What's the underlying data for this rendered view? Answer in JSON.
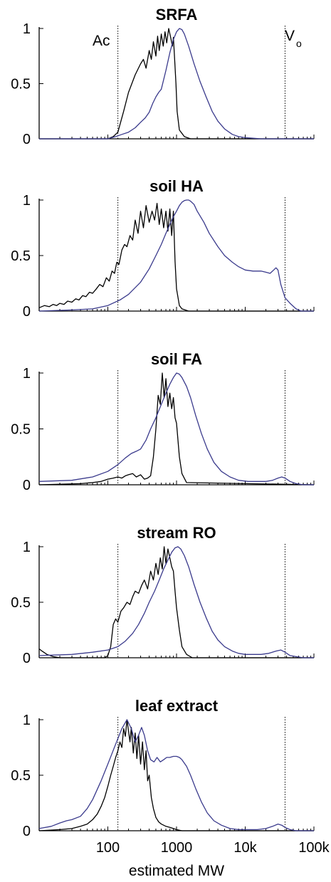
{
  "figure": {
    "xlabel": "estimated MW"
  },
  "annotations": {
    "ac_label": "Ac",
    "vo_label": "V",
    "vo_sub": "o"
  },
  "chart_data": [
    {
      "type": "line",
      "title": "SRFA",
      "xscale": "log",
      "xlim": [
        10,
        100000
      ],
      "ylim": [
        0,
        1
      ],
      "x_ticks": [
        "100",
        "1000",
        "10k",
        "100k"
      ],
      "y_ticks": [
        "0",
        "0.5",
        "1"
      ],
      "xlabel": "",
      "ylabel": "",
      "reference_lines": [
        {
          "label": "Ac",
          "x": 140
        },
        {
          "label": "Vo",
          "x": 38000
        }
      ],
      "series": [
        {
          "color": "#000000",
          "x": [
            10,
            100,
            120,
            140,
            170,
            200,
            250,
            300,
            330,
            360,
            400,
            430,
            460,
            500,
            530,
            560,
            600,
            640,
            680,
            720,
            770,
            820,
            870,
            900,
            930,
            980,
            1020,
            1100,
            1300,
            1600,
            100000
          ],
          "y": [
            0,
            0,
            0.02,
            0.06,
            0.25,
            0.42,
            0.58,
            0.68,
            0.72,
            0.64,
            0.8,
            0.72,
            0.88,
            0.75,
            0.93,
            0.8,
            0.95,
            0.84,
            0.97,
            0.87,
            1.0,
            0.92,
            0.84,
            0.92,
            0.76,
            0.5,
            0.25,
            0.08,
            0.02,
            0,
            0
          ]
        },
        {
          "color": "#3a3a8c",
          "x": [
            10,
            100,
            130,
            160,
            200,
            250,
            300,
            350,
            400,
            450,
            500,
            550,
            600,
            700,
            800,
            900,
            1000,
            1100,
            1200,
            1300,
            1500,
            1800,
            2200,
            2700,
            3300,
            4000,
            5000,
            6500,
            8000,
            10000,
            13000,
            17000,
            22000,
            30000,
            38000,
            100000
          ],
          "y": [
            0,
            0,
            0.02,
            0.04,
            0.06,
            0.1,
            0.15,
            0.19,
            0.24,
            0.32,
            0.38,
            0.42,
            0.45,
            0.62,
            0.78,
            0.9,
            0.97,
            1.0,
            0.99,
            0.95,
            0.84,
            0.68,
            0.52,
            0.38,
            0.25,
            0.16,
            0.09,
            0.04,
            0.02,
            0.01,
            0.005,
            0,
            0,
            0,
            0,
            0
          ]
        }
      ]
    },
    {
      "type": "line",
      "title": "soil HA",
      "xscale": "log",
      "xlim": [
        10,
        100000
      ],
      "ylim": [
        0,
        1
      ],
      "x_ticks": [
        "100",
        "1000",
        "10k",
        "100k"
      ],
      "y_ticks": [
        "0",
        "0.5",
        "1"
      ],
      "xlabel": "",
      "ylabel": "",
      "reference_lines": [
        {
          "label": "Ac",
          "x": 140
        },
        {
          "label": "Vo",
          "x": 38000
        }
      ],
      "series": [
        {
          "color": "#000000",
          "x": [
            10,
            12,
            14,
            16,
            18,
            20,
            23,
            26,
            30,
            34,
            38,
            43,
            48,
            54,
            60,
            68,
            76,
            85,
            95,
            105,
            115,
            125,
            135,
            145,
            160,
            175,
            190,
            210,
            230,
            250,
            275,
            300,
            330,
            360,
            400,
            440,
            480,
            520,
            560,
            600,
            650,
            700,
            750,
            800,
            850,
            900,
            950,
            1000,
            1100,
            1200,
            1500,
            100000
          ],
          "y": [
            0.03,
            0.05,
            0.04,
            0.06,
            0.05,
            0.07,
            0.06,
            0.09,
            0.08,
            0.11,
            0.1,
            0.14,
            0.13,
            0.17,
            0.16,
            0.2,
            0.24,
            0.22,
            0.3,
            0.27,
            0.36,
            0.34,
            0.44,
            0.42,
            0.55,
            0.6,
            0.58,
            0.68,
            0.64,
            0.82,
            0.7,
            0.9,
            0.75,
            0.95,
            0.8,
            0.9,
            0.82,
            0.97,
            0.78,
            0.92,
            0.75,
            0.9,
            0.72,
            0.92,
            0.68,
            0.9,
            0.45,
            0.2,
            0.05,
            0.02,
            0,
            0
          ]
        },
        {
          "color": "#3a3a8c",
          "x": [
            10,
            30,
            60,
            100,
            150,
            200,
            300,
            400,
            500,
            600,
            700,
            800,
            900,
            1000,
            1100,
            1200,
            1300,
            1400,
            1500,
            1600,
            1800,
            2000,
            2500,
            3000,
            4000,
            5000,
            6500,
            8000,
            10000,
            13000,
            17000,
            20000,
            23000,
            26000,
            28000,
            30000,
            33000,
            38000,
            45000,
            55000,
            65000,
            100000
          ],
          "y": [
            0,
            0.01,
            0.02,
            0.05,
            0.1,
            0.15,
            0.26,
            0.38,
            0.5,
            0.6,
            0.7,
            0.78,
            0.85,
            0.9,
            0.95,
            0.98,
            0.995,
            1.0,
            1.0,
            0.99,
            0.96,
            0.9,
            0.8,
            0.7,
            0.58,
            0.5,
            0.44,
            0.4,
            0.37,
            0.36,
            0.36,
            0.35,
            0.34,
            0.37,
            0.39,
            0.37,
            0.24,
            0.12,
            0.07,
            0.02,
            0,
            0
          ]
        }
      ]
    },
    {
      "type": "line",
      "title": "soil FA",
      "xscale": "log",
      "xlim": [
        10,
        100000
      ],
      "ylim": [
        0,
        1
      ],
      "x_ticks": [
        "100",
        "1000",
        "10k",
        "100k"
      ],
      "y_ticks": [
        "0",
        "0.5",
        "1"
      ],
      "xlabel": "",
      "ylabel": "",
      "reference_lines": [
        {
          "label": "Ac",
          "x": 140
        },
        {
          "label": "Vo",
          "x": 38000
        }
      ],
      "series": [
        {
          "color": "#000000",
          "x": [
            10,
            40,
            60,
            80,
            100,
            120,
            140,
            160,
            180,
            200,
            230,
            260,
            300,
            340,
            380,
            420,
            460,
            500,
            540,
            580,
            620,
            660,
            700,
            750,
            800,
            850,
            900,
            950,
            1000,
            1050,
            1100,
            1200,
            1400,
            100000
          ],
          "y": [
            0,
            0.01,
            0.02,
            0.03,
            0.05,
            0.06,
            0.07,
            0.06,
            0.08,
            0.09,
            0.1,
            0.07,
            0.09,
            0.05,
            0.06,
            0.08,
            0.25,
            0.5,
            0.8,
            0.72,
            1.0,
            0.78,
            0.95,
            0.7,
            0.82,
            0.68,
            0.78,
            0.6,
            0.55,
            0.4,
            0.25,
            0.1,
            0.02,
            0
          ]
        },
        {
          "color": "#3a3a8c",
          "x": [
            10,
            30,
            60,
            100,
            140,
            180,
            220,
            260,
            300,
            360,
            420,
            500,
            600,
            700,
            800,
            900,
            1000,
            1100,
            1200,
            1400,
            1600,
            1900,
            2300,
            2800,
            3500,
            4500,
            6000,
            8000,
            11000,
            15000,
            20000,
            25000,
            30000,
            34000,
            38000,
            45000,
            55000,
            70000,
            100000
          ],
          "y": [
            0.03,
            0.04,
            0.07,
            0.12,
            0.18,
            0.24,
            0.28,
            0.3,
            0.32,
            0.4,
            0.5,
            0.6,
            0.72,
            0.82,
            0.9,
            0.96,
            1.0,
            0.99,
            0.96,
            0.88,
            0.78,
            0.62,
            0.46,
            0.32,
            0.2,
            0.12,
            0.07,
            0.04,
            0.03,
            0.03,
            0.03,
            0.04,
            0.06,
            0.07,
            0.06,
            0.03,
            0.01,
            0,
            0
          ]
        }
      ]
    },
    {
      "type": "line",
      "title": "stream RO",
      "xscale": "log",
      "xlim": [
        10,
        100000
      ],
      "ylim": [
        0,
        1
      ],
      "x_ticks": [
        "100",
        "1000",
        "10k",
        "100k"
      ],
      "y_ticks": [
        "0",
        "0.5",
        "1"
      ],
      "xlabel": "",
      "ylabel": "",
      "reference_lines": [
        {
          "label": "Ac",
          "x": 140
        },
        {
          "label": "Vo",
          "x": 38000
        }
      ],
      "series": [
        {
          "color": "#000000",
          "x": [
            10,
            11,
            13,
            16,
            20,
            30,
            60,
            90,
            100,
            110,
            120,
            130,
            140,
            155,
            170,
            190,
            210,
            230,
            250,
            280,
            310,
            340,
            380,
            420,
            460,
            500,
            540,
            580,
            620,
            660,
            700,
            750,
            800,
            850,
            900,
            950,
            1000,
            1100,
            1200,
            1400,
            1700,
            100000
          ],
          "y": [
            0.08,
            0.06,
            0.03,
            0.01,
            0,
            0,
            0,
            0,
            0.02,
            0.1,
            0.3,
            0.35,
            0.32,
            0.42,
            0.45,
            0.5,
            0.48,
            0.55,
            0.6,
            0.58,
            0.65,
            0.7,
            0.62,
            0.78,
            0.7,
            0.85,
            0.75,
            0.9,
            0.8,
            1.0,
            0.85,
            0.98,
            0.9,
            0.82,
            0.78,
            0.6,
            0.45,
            0.25,
            0.1,
            0.03,
            0,
            0
          ]
        },
        {
          "color": "#3a3a8c",
          "x": [
            10,
            30,
            60,
            100,
            140,
            180,
            230,
            280,
            340,
            400,
            480,
            560,
            650,
            750,
            850,
            950,
            1050,
            1150,
            1300,
            1500,
            1800,
            2200,
            2700,
            3300,
            4000,
            5000,
            6500,
            8000,
            10000,
            13000,
            17000,
            22000,
            28000,
            33000,
            38000,
            45000,
            55000,
            70000,
            100000
          ],
          "y": [
            0.02,
            0.03,
            0.05,
            0.07,
            0.1,
            0.15,
            0.22,
            0.3,
            0.4,
            0.5,
            0.6,
            0.7,
            0.8,
            0.88,
            0.95,
            0.99,
            1.0,
            0.98,
            0.92,
            0.82,
            0.66,
            0.5,
            0.36,
            0.24,
            0.16,
            0.1,
            0.06,
            0.04,
            0.03,
            0.03,
            0.03,
            0.04,
            0.06,
            0.07,
            0.05,
            0.02,
            0.01,
            0,
            0
          ]
        }
      ]
    },
    {
      "type": "line",
      "title": "leaf extract",
      "xscale": "log",
      "xlim": [
        10,
        100000
      ],
      "ylim": [
        0,
        1
      ],
      "x_ticks": [
        "100",
        "1000",
        "10k",
        "100k"
      ],
      "y_ticks": [
        "0",
        "0.5",
        "1"
      ],
      "xlabel": "",
      "ylabel": "",
      "reference_lines": [
        {
          "label": "Ac",
          "x": 140
        },
        {
          "label": "Vo",
          "x": 38000
        }
      ],
      "series": [
        {
          "color": "#000000",
          "x": [
            10,
            20,
            30,
            40,
            50,
            60,
            70,
            80,
            90,
            100,
            110,
            120,
            130,
            140,
            150,
            160,
            170,
            180,
            190,
            200,
            210,
            220,
            235,
            250,
            265,
            280,
            300,
            320,
            340,
            360,
            380,
            400,
            430,
            460,
            500,
            550,
            600,
            700,
            800,
            900,
            1000,
            1200,
            100000
          ],
          "y": [
            0,
            0.01,
            0.02,
            0.04,
            0.06,
            0.1,
            0.15,
            0.22,
            0.3,
            0.4,
            0.5,
            0.58,
            0.66,
            0.72,
            0.8,
            0.75,
            0.92,
            0.85,
            1.0,
            0.9,
            0.8,
            0.93,
            0.7,
            0.88,
            0.65,
            0.86,
            0.6,
            0.8,
            0.55,
            0.72,
            0.45,
            0.5,
            0.3,
            0.2,
            0.12,
            0.08,
            0.06,
            0.04,
            0.03,
            0.02,
            0.01,
            0,
            0
          ]
        },
        {
          "color": "#3a3a8c",
          "x": [
            10,
            15,
            20,
            25,
            30,
            40,
            50,
            60,
            80,
            100,
            130,
            160,
            190,
            220,
            250,
            280,
            310,
            340,
            380,
            420,
            470,
            520,
            580,
            650,
            720,
            800,
            900,
            1000,
            1100,
            1200,
            1400,
            1600,
            1900,
            2300,
            2800,
            3500,
            4500,
            6000,
            8000,
            11000,
            15000,
            20000,
            25000,
            30000,
            34000,
            38000,
            45000,
            55000,
            100000
          ],
          "y": [
            0.02,
            0.04,
            0.07,
            0.09,
            0.1,
            0.13,
            0.2,
            0.28,
            0.45,
            0.6,
            0.78,
            0.92,
            1.0,
            0.92,
            0.8,
            0.86,
            0.93,
            0.86,
            0.72,
            0.64,
            0.62,
            0.66,
            0.62,
            0.64,
            0.66,
            0.66,
            0.67,
            0.67,
            0.66,
            0.64,
            0.58,
            0.5,
            0.38,
            0.26,
            0.16,
            0.09,
            0.05,
            0.02,
            0.01,
            0.01,
            0.01,
            0.02,
            0.04,
            0.06,
            0.05,
            0.03,
            0.01,
            0,
            0
          ]
        }
      ]
    }
  ]
}
